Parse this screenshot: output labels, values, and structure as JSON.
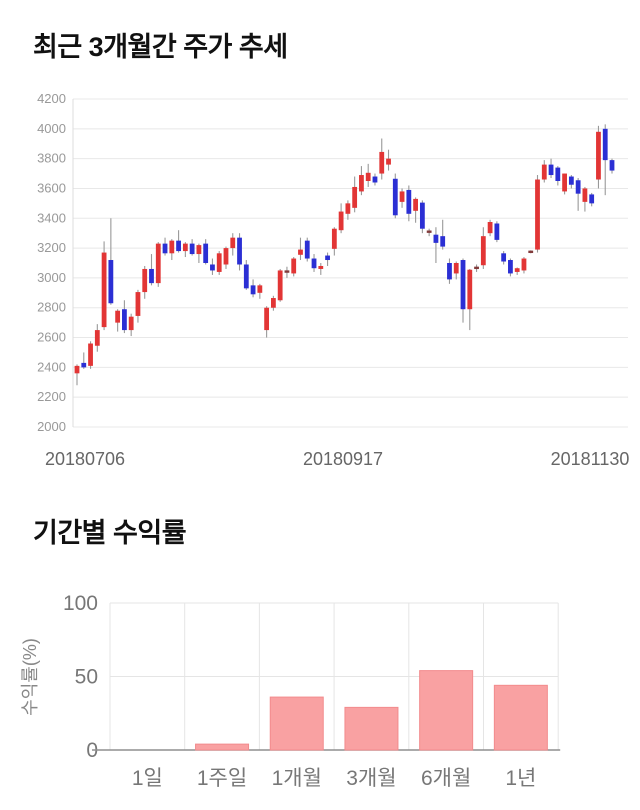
{
  "chart_data": [
    {
      "type": "candlestick",
      "title": "최근 3개월간 주가 추세",
      "y_axis": {
        "min": 2000,
        "max": 4200,
        "ticks": [
          4200,
          4000,
          3800,
          3600,
          3400,
          3200,
          3000,
          2800,
          2600,
          2400,
          2200,
          2000
        ]
      },
      "x_axis": {
        "labels": [
          "20180706",
          "20180917",
          "20181130"
        ]
      },
      "colors": {
        "up": "#e23535",
        "down": "#2b2fd4",
        "doji": "#823b3b",
        "wick": "#999999",
        "grid": "#e8e8e8",
        "axis": "#dddddd",
        "y_tick_text": "#999999",
        "x_tick_text": "#666666"
      },
      "candles": [
        [
          2360,
          2420,
          2280,
          2410
        ],
        [
          2430,
          2500,
          2390,
          2400
        ],
        [
          2410,
          2575,
          2390,
          2560
        ],
        [
          2545,
          2690,
          2505,
          2650
        ],
        [
          2670,
          3245,
          2650,
          3170
        ],
        [
          3120,
          3400,
          2820,
          2830
        ],
        [
          2700,
          2790,
          2640,
          2780
        ],
        [
          2790,
          2850,
          2630,
          2650
        ],
        [
          2650,
          2760,
          2610,
          2740
        ],
        [
          2745,
          2920,
          2700,
          2905
        ],
        [
          2905,
          3080,
          2860,
          3060
        ],
        [
          3060,
          3160,
          2950,
          2965
        ],
        [
          2965,
          3240,
          2940,
          3230
        ],
        [
          3230,
          3270,
          3150,
          3165
        ],
        [
          3165,
          3260,
          3120,
          3250
        ],
        [
          3250,
          3320,
          3170,
          3180
        ],
        [
          3180,
          3240,
          3140,
          3230
        ],
        [
          3230,
          3260,
          3150,
          3160
        ],
        [
          3160,
          3230,
          3100,
          3220
        ],
        [
          3230,
          3260,
          3090,
          3100
        ],
        [
          3090,
          3130,
          3020,
          3050
        ],
        [
          3040,
          3180,
          3020,
          3165
        ],
        [
          3090,
          3210,
          3060,
          3200
        ],
        [
          3200,
          3300,
          3150,
          3270
        ],
        [
          3270,
          3300,
          3050,
          3090
        ],
        [
          3090,
          3120,
          2920,
          2930
        ],
        [
          2950,
          2990,
          2870,
          2890
        ],
        [
          2900,
          2960,
          2860,
          2950
        ],
        [
          2650,
          2810,
          2600,
          2800
        ],
        [
          2800,
          2880,
          2780,
          2865
        ],
        [
          2850,
          3060,
          2840,
          3050
        ],
        [
          3040,
          3075,
          3000,
          3045
        ],
        [
          3030,
          3140,
          3010,
          3130
        ],
        [
          3155,
          3270,
          3120,
          3190
        ],
        [
          3250,
          3270,
          3110,
          3130
        ],
        [
          3130,
          3160,
          3040,
          3065
        ],
        [
          3060,
          3100,
          3020,
          3080
        ],
        [
          3150,
          3170,
          3080,
          3120
        ],
        [
          3195,
          3340,
          3150,
          3330
        ],
        [
          3320,
          3500,
          3300,
          3445
        ],
        [
          3430,
          3520,
          3390,
          3500
        ],
        [
          3470,
          3680,
          3440,
          3610
        ],
        [
          3580,
          3750,
          3555,
          3690
        ],
        [
          3650,
          3765,
          3610,
          3705
        ],
        [
          3680,
          3700,
          3620,
          3640
        ],
        [
          3700,
          3935,
          3660,
          3845
        ],
        [
          3760,
          3860,
          3720,
          3800
        ],
        [
          3665,
          3700,
          3400,
          3420
        ],
        [
          3510,
          3600,
          3470,
          3580
        ],
        [
          3590,
          3620,
          3380,
          3430
        ],
        [
          3450,
          3540,
          3370,
          3530
        ],
        [
          3505,
          3520,
          3300,
          3330
        ],
        [
          3310,
          3330,
          3280,
          3310
        ],
        [
          3290,
          3340,
          3100,
          3235
        ],
        [
          3280,
          3390,
          3190,
          3210
        ],
        [
          3100,
          3130,
          2960,
          2990
        ],
        [
          3030,
          3110,
          2990,
          3100
        ],
        [
          3120,
          3130,
          2700,
          2790
        ],
        [
          2790,
          3060,
          2650,
          3055
        ],
        [
          3065,
          3090,
          3040,
          3070
        ],
        [
          3085,
          3340,
          3060,
          3280
        ],
        [
          3300,
          3390,
          3280,
          3375
        ],
        [
          3365,
          3380,
          3240,
          3255
        ],
        [
          3165,
          3180,
          3090,
          3110
        ],
        [
          3120,
          3130,
          3010,
          3030
        ],
        [
          3040,
          3070,
          3020,
          3065
        ],
        [
          3050,
          3140,
          3030,
          3130
        ],
        [
          3175,
          3185,
          3165,
          3175
        ],
        [
          3190,
          3690,
          3170,
          3660
        ],
        [
          3660,
          3790,
          3640,
          3760
        ],
        [
          3760,
          3800,
          3670,
          3690
        ],
        [
          3740,
          3750,
          3620,
          3650
        ],
        [
          3580,
          3700,
          3560,
          3700
        ],
        [
          3680,
          3690,
          3600,
          3625
        ],
        [
          3655,
          3670,
          3450,
          3565
        ],
        [
          3510,
          3610,
          3445,
          3600
        ],
        [
          3560,
          3570,
          3480,
          3500
        ],
        [
          3660,
          4020,
          3600,
          3980
        ],
        [
          4000,
          4030,
          3555,
          3790
        ],
        [
          3790,
          3800,
          3700,
          3720
        ]
      ]
    },
    {
      "type": "bar",
      "title": "기간별 수익률",
      "ylabel": "수익률(%)",
      "ylim": [
        0,
        100
      ],
      "yticks": [
        0,
        50,
        100
      ],
      "categories": [
        "1일",
        "1주일",
        "1개월",
        "3개월",
        "6개월",
        "1년"
      ],
      "values": [
        0,
        4,
        36,
        29,
        54,
        44
      ],
      "colors": {
        "bar": "#f9a1a2",
        "bar_border": "#f28b8d",
        "grid": "#e5e5e5",
        "axis": "#8f8f8f",
        "tick_text": "#777777",
        "ylabel_text": "#888888"
      },
      "legend": "none",
      "grid": "on"
    }
  ]
}
